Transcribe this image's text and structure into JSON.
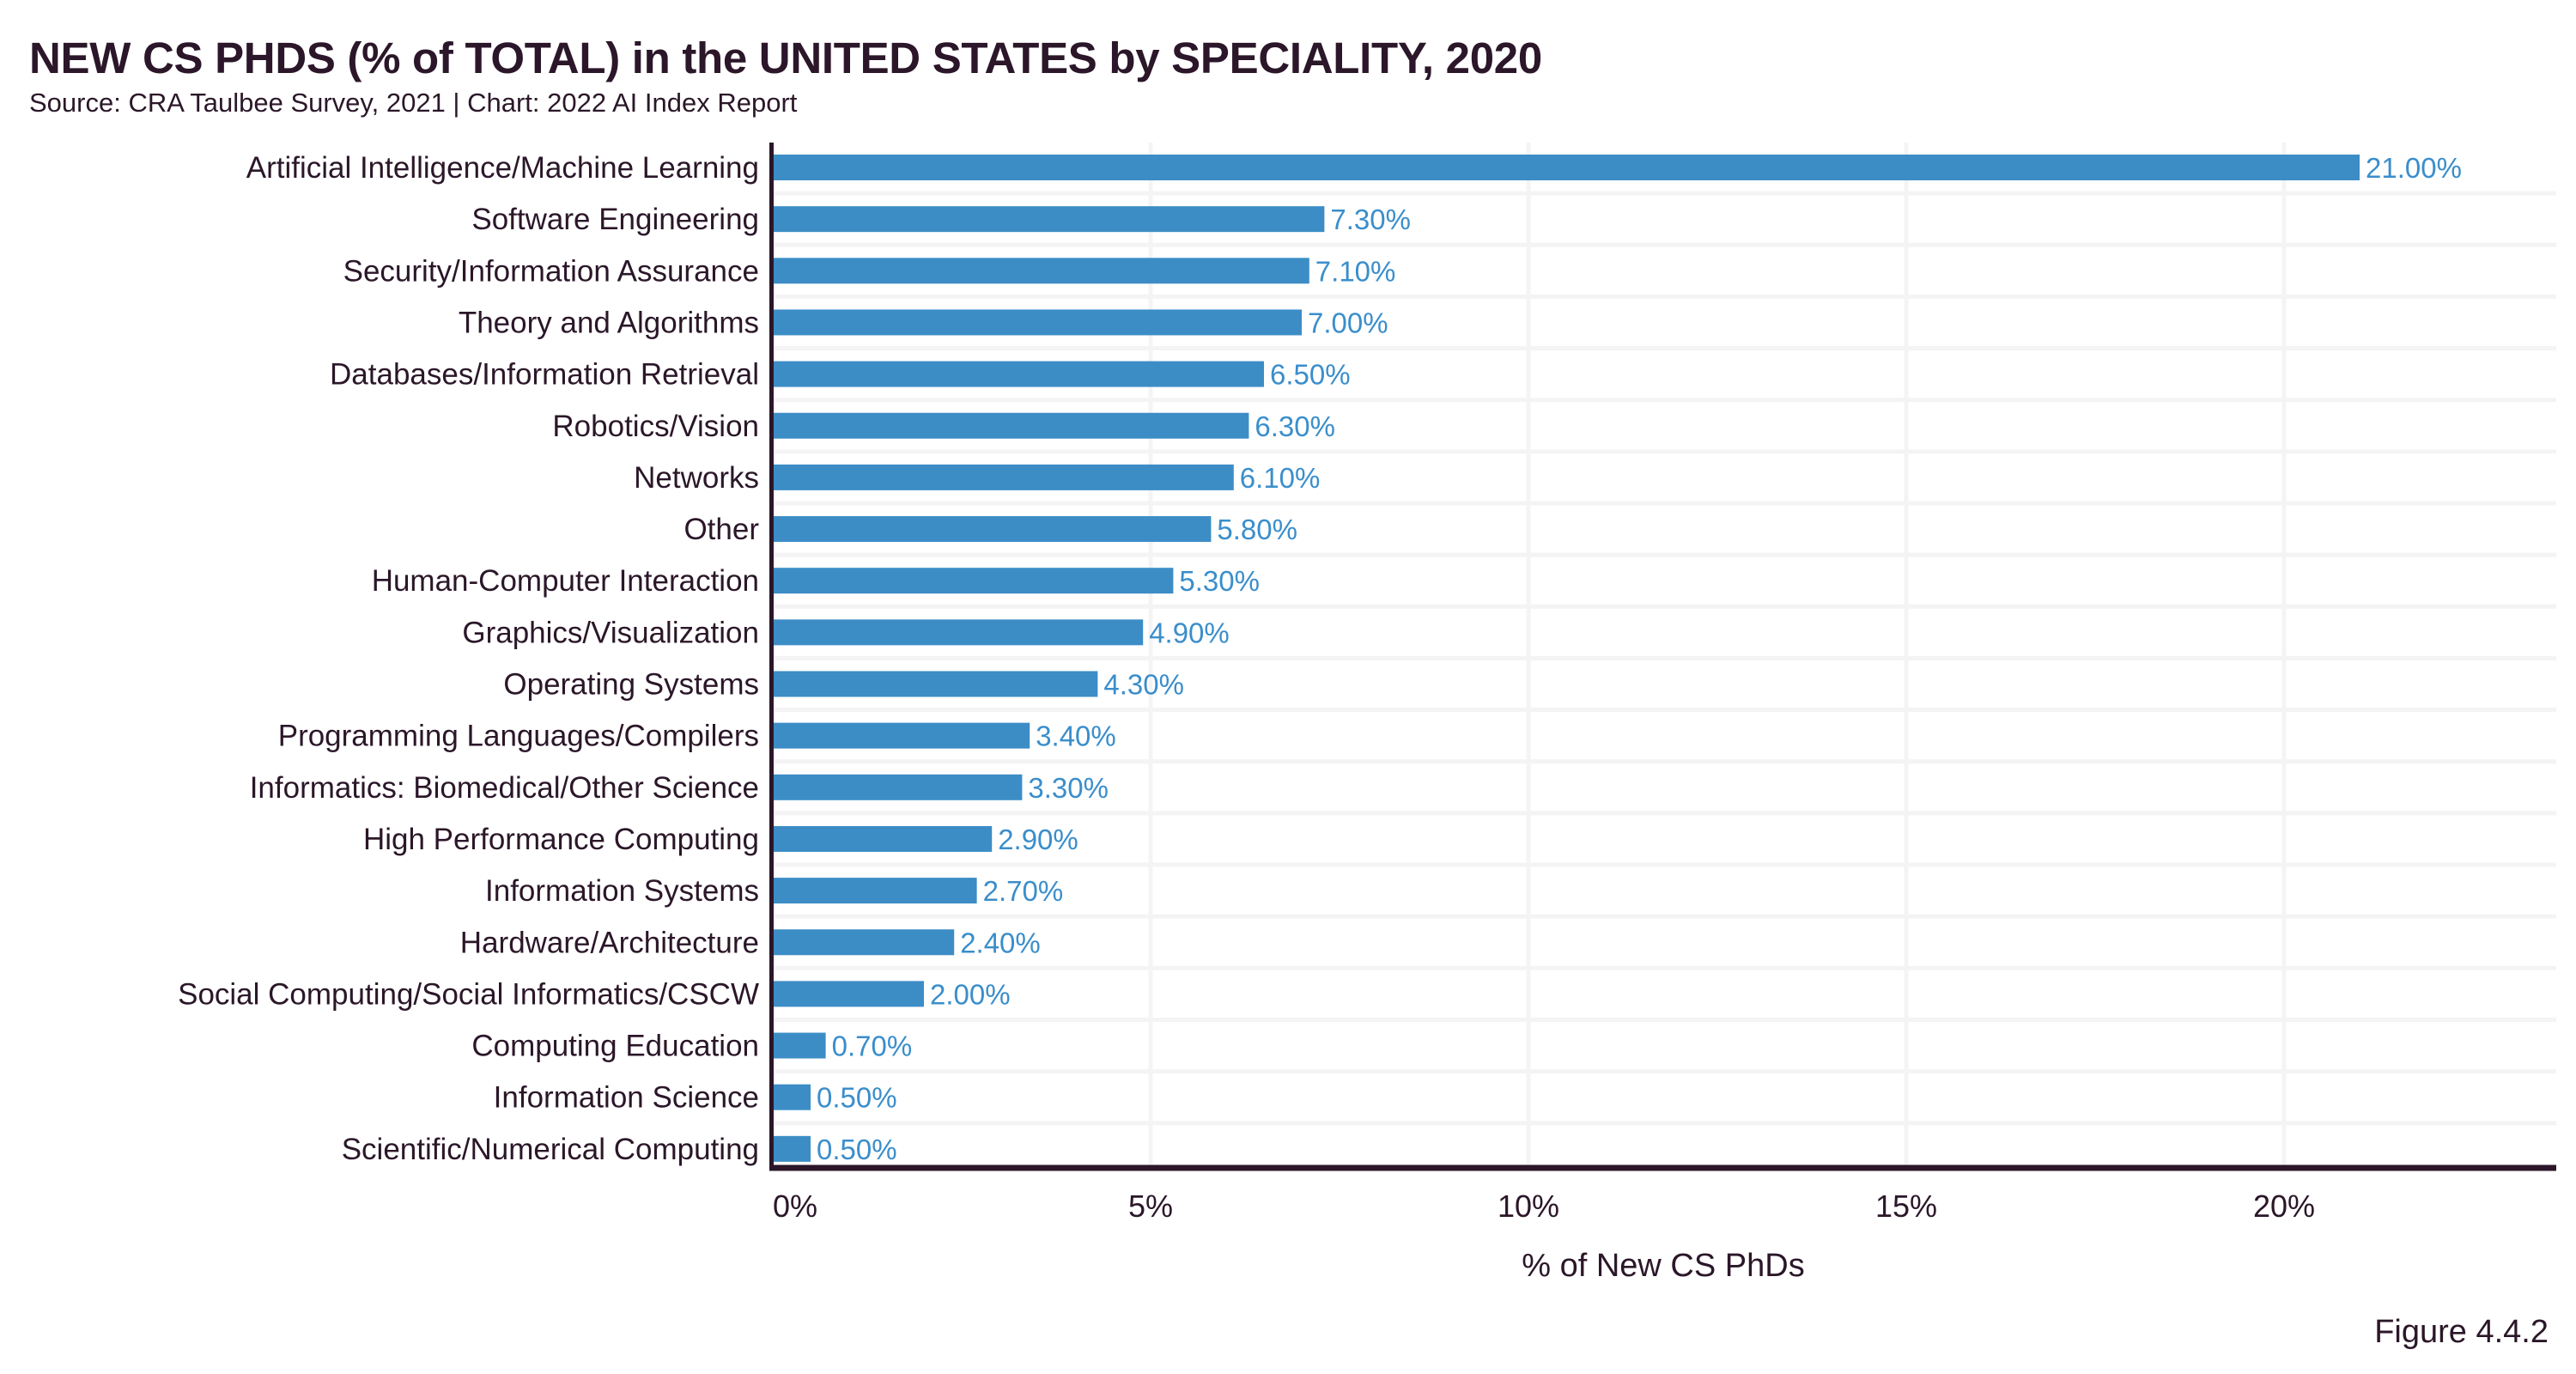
{
  "header": {
    "title": "NEW CS PHDS (% of TOTAL) in the UNITED STATES by SPECIALITY, 2020",
    "subtitle": "Source: CRA Taulbee Survey, 2021 | Chart: 2022 AI Index Report"
  },
  "figure_label": "Figure 4.4.2",
  "colors": {
    "bar": "#3c8dc6",
    "value_label": "#3a8ecb",
    "text": "#2b1729",
    "axis": "#2b1729",
    "grid": "#f4f4f4"
  },
  "chart_data": {
    "type": "bar",
    "orientation": "horizontal",
    "title": "NEW CS PHDS (% of TOTAL) in the UNITED STATES by SPECIALITY, 2020",
    "subtitle": "Source: CRA Taulbee Survey, 2021 | Chart: 2022 AI Index Report",
    "xlabel": "% of New CS PhDs",
    "ylabel": "",
    "xlim": [
      0,
      23.5
    ],
    "xticks": [
      0,
      5,
      10,
      15,
      20
    ],
    "xtick_labels": [
      "0%",
      "5%",
      "10%",
      "15%",
      "20%"
    ],
    "grid": true,
    "legend": "none",
    "categories": [
      "Artificial Intelligence/Machine Learning",
      "Software Engineering",
      "Security/Information Assurance",
      "Theory and Algorithms",
      "Databases/Information Retrieval",
      "Robotics/Vision",
      "Networks",
      "Other",
      "Human-Computer Interaction",
      "Graphics/Visualization",
      "Operating Systems",
      "Programming Languages/Compilers",
      "Informatics: Biomedical/Other Science",
      "High Performance Computing",
      "Information Systems",
      "Hardware/Architecture",
      "Social Computing/Social Informatics/CSCW",
      "Computing Education",
      "Information Science",
      "Scientific/Numerical Computing"
    ],
    "values": [
      21.0,
      7.3,
      7.1,
      7.0,
      6.5,
      6.3,
      6.1,
      5.8,
      5.3,
      4.9,
      4.3,
      3.4,
      3.3,
      2.9,
      2.7,
      2.4,
      2.0,
      0.7,
      0.5,
      0.5
    ],
    "value_labels": [
      "21.00%",
      "7.30%",
      "7.10%",
      "7.00%",
      "6.50%",
      "6.30%",
      "6.10%",
      "5.80%",
      "5.30%",
      "4.90%",
      "4.30%",
      "3.40%",
      "3.30%",
      "2.90%",
      "2.70%",
      "2.40%",
      "2.00%",
      "0.70%",
      "0.50%",
      "0.50%"
    ]
  }
}
